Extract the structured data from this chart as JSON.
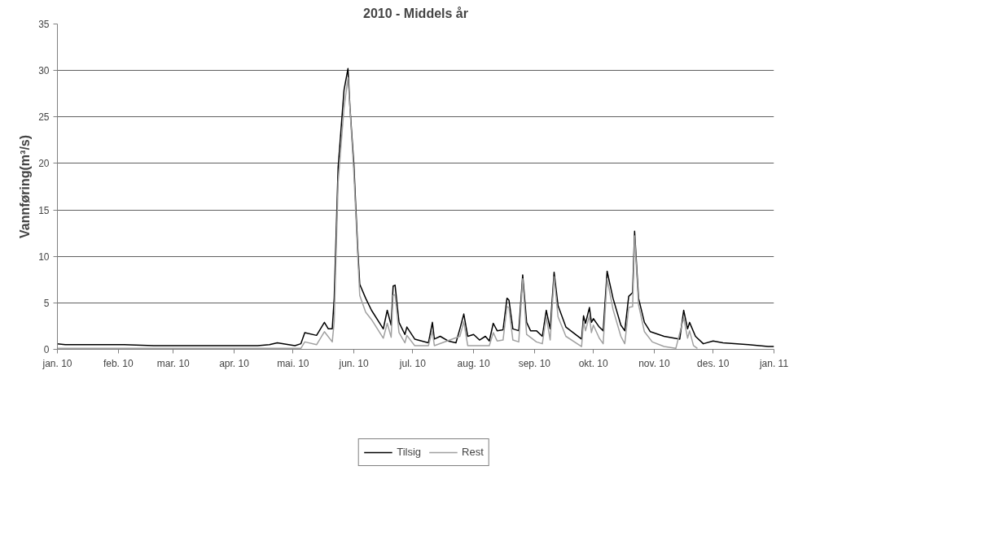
{
  "chart_data": {
    "type": "line",
    "title": "2010 - Middels år",
    "ylabel": "Vannføring(m³/s)",
    "xlim": [
      "2010-01-01",
      "2011-01-01"
    ],
    "ylim": [
      0,
      35
    ],
    "yticks": [
      0,
      5,
      10,
      15,
      20,
      25,
      30,
      35
    ],
    "xticks": [
      {
        "value": "2010-01-01",
        "label": "jan. 10"
      },
      {
        "value": "2010-02-01",
        "label": "feb. 10"
      },
      {
        "value": "2010-03-01",
        "label": "mar. 10"
      },
      {
        "value": "2010-04-01",
        "label": "apr. 10"
      },
      {
        "value": "2010-05-01",
        "label": "mai. 10"
      },
      {
        "value": "2010-06-01",
        "label": "jun. 10"
      },
      {
        "value": "2010-07-01",
        "label": "jul. 10"
      },
      {
        "value": "2010-08-01",
        "label": "aug. 10"
      },
      {
        "value": "2010-09-01",
        "label": "sep. 10"
      },
      {
        "value": "2010-10-01",
        "label": "okt. 10"
      },
      {
        "value": "2010-11-01",
        "label": "nov. 10"
      },
      {
        "value": "2010-12-01",
        "label": "des. 10"
      },
      {
        "value": "2011-01-01",
        "label": "jan. 11"
      }
    ],
    "grid": "y",
    "legend": "bottom",
    "line_style": "solid",
    "series": [
      {
        "name": "Tilsig",
        "color": "#000000",
        "x": [
          "2010-01-01",
          "2010-01-05",
          "2010-01-18",
          "2010-02-04",
          "2010-02-19",
          "2010-03-02",
          "2010-03-17",
          "2010-04-01",
          "2010-04-13",
          "2010-04-19",
          "2010-04-23",
          "2010-05-02",
          "2010-05-05",
          "2010-05-07",
          "2010-05-13",
          "2010-05-17",
          "2010-05-19",
          "2010-05-21",
          "2010-05-22",
          "2010-05-24",
          "2010-05-27",
          "2010-05-29",
          "2010-05-30",
          "2010-06-01",
          "2010-06-03",
          "2010-06-04",
          "2010-06-07",
          "2010-06-10",
          "2010-06-16",
          "2010-06-18",
          "2010-06-20",
          "2010-06-21",
          "2010-06-22",
          "2010-06-24",
          "2010-06-27",
          "2010-06-28",
          "2010-07-02",
          "2010-07-09",
          "2010-07-11",
          "2010-07-12",
          "2010-07-15",
          "2010-07-19",
          "2010-07-23",
          "2010-07-25",
          "2010-07-27",
          "2010-07-29",
          "2010-08-01",
          "2010-08-04",
          "2010-08-07",
          "2010-08-09",
          "2010-08-11",
          "2010-08-13",
          "2010-08-16",
          "2010-08-18",
          "2010-08-19",
          "2010-08-21",
          "2010-08-24",
          "2010-08-26",
          "2010-08-28",
          "2010-08-30",
          "2010-09-02",
          "2010-09-05",
          "2010-09-07",
          "2010-09-09",
          "2010-09-11",
          "2010-09-13",
          "2010-09-17",
          "2010-09-25",
          "2010-09-26",
          "2010-09-27",
          "2010-09-29",
          "2010-09-30",
          "2010-10-01",
          "2010-10-04",
          "2010-10-06",
          "2010-10-08",
          "2010-10-11",
          "2010-10-15",
          "2010-10-17",
          "2010-10-19",
          "2010-10-21",
          "2010-10-22",
          "2010-10-24",
          "2010-10-27",
          "2010-10-30",
          "2010-11-06",
          "2010-11-14",
          "2010-11-16",
          "2010-11-18",
          "2010-11-19",
          "2010-11-22",
          "2010-11-26",
          "2010-12-01",
          "2010-12-06",
          "2010-12-19",
          "2010-12-29",
          "2011-01-01"
        ],
        "values": [
          0.6,
          0.5,
          0.5,
          0.5,
          0.4,
          0.4,
          0.4,
          0.4,
          0.4,
          0.5,
          0.7,
          0.4,
          0.6,
          1.8,
          1.5,
          2.9,
          2.2,
          2.2,
          5.5,
          19.6,
          27.9,
          30.2,
          26.1,
          19.9,
          10.7,
          7.0,
          5.5,
          4.2,
          2.2,
          4.2,
          2.6,
          6.8,
          6.9,
          2.9,
          1.6,
          2.4,
          1.1,
          0.7,
          2.9,
          1.1,
          1.4,
          0.9,
          0.7,
          2.2,
          3.8,
          1.4,
          1.6,
          1.0,
          1.4,
          0.9,
          2.8,
          2.0,
          2.1,
          5.5,
          5.3,
          2.2,
          2.0,
          8.0,
          2.9,
          2.0,
          2.0,
          1.4,
          4.2,
          2.2,
          8.3,
          4.7,
          2.4,
          1.1,
          3.6,
          2.8,
          4.5,
          2.9,
          3.3,
          2.4,
          2.0,
          8.4,
          5.5,
          2.6,
          2.0,
          5.7,
          6.1,
          12.7,
          5.5,
          2.9,
          1.9,
          1.4,
          1.1,
          4.2,
          2.2,
          2.9,
          1.4,
          0.6,
          0.9,
          0.7,
          0.5,
          0.3,
          0.3
        ]
      },
      {
        "name": "Rest",
        "color": "#a0a0a0",
        "x": [
          "2010-01-01",
          "2010-04-13",
          "2010-04-19",
          "2010-05-05",
          "2010-05-07",
          "2010-05-13",
          "2010-05-17",
          "2010-05-21",
          "2010-05-22",
          "2010-05-24",
          "2010-05-27",
          "2010-05-29",
          "2010-05-30",
          "2010-06-01",
          "2010-06-03",
          "2010-06-04",
          "2010-06-07",
          "2010-06-10",
          "2010-06-16",
          "2010-06-18",
          "2010-06-20",
          "2010-06-21",
          "2010-06-22",
          "2010-06-24",
          "2010-06-27",
          "2010-06-28",
          "2010-07-02",
          "2010-07-09",
          "2010-07-11",
          "2010-07-12",
          "2010-07-25",
          "2010-07-27",
          "2010-07-29",
          "2010-08-09",
          "2010-08-11",
          "2010-08-13",
          "2010-08-16",
          "2010-08-18",
          "2010-08-19",
          "2010-08-21",
          "2010-08-24",
          "2010-08-26",
          "2010-08-28",
          "2010-09-02",
          "2010-09-05",
          "2010-09-07",
          "2010-09-09",
          "2010-09-11",
          "2010-09-13",
          "2010-09-17",
          "2010-09-25",
          "2010-09-26",
          "2010-09-27",
          "2010-09-29",
          "2010-09-30",
          "2010-10-01",
          "2010-10-04",
          "2010-10-06",
          "2010-10-08",
          "2010-10-11",
          "2010-10-15",
          "2010-10-17",
          "2010-10-19",
          "2010-10-21",
          "2010-10-22",
          "2010-10-24",
          "2010-10-27",
          "2010-10-31",
          "2010-11-06",
          "2010-11-12",
          "2010-11-16",
          "2010-11-18",
          "2010-11-19",
          "2010-11-21",
          "2010-11-23"
        ],
        "values": [
          0.1,
          0.1,
          0.1,
          0.1,
          0.8,
          0.5,
          1.9,
          0.8,
          3.0,
          18,
          26,
          29.2,
          26,
          19,
          10,
          5.8,
          4.0,
          3.2,
          1.2,
          2.8,
          1.3,
          5.8,
          5.9,
          1.8,
          0.7,
          1.5,
          0.4,
          0.4,
          2.0,
          0.4,
          1.4,
          3.0,
          0.4,
          0.4,
          1.8,
          0.9,
          1.0,
          4.6,
          4.5,
          1.0,
          0.8,
          7.6,
          1.6,
          0.8,
          0.6,
          3.5,
          1.0,
          7.8,
          3.5,
          1.4,
          0.3,
          3.0,
          2.0,
          3.6,
          1.8,
          2.6,
          1.2,
          0.6,
          7.6,
          4.3,
          1.4,
          0.6,
          4.5,
          4.6,
          12.2,
          4.8,
          1.9,
          0.8,
          0.3,
          0.1,
          3.4,
          1.2,
          2.0,
          0.4,
          0.1
        ]
      }
    ]
  }
}
